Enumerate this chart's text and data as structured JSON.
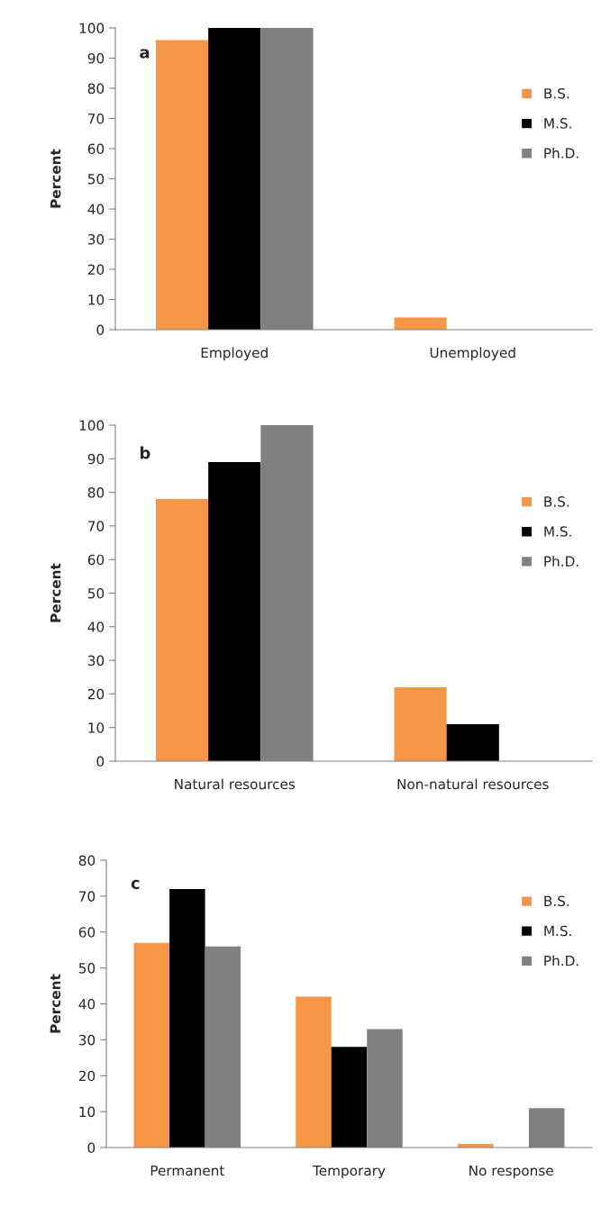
{
  "chart_data": [
    {
      "type": "bar",
      "annotations": [
        "a"
      ],
      "ylabel": "Percent",
      "categories": [
        "Employed",
        "Unemployed"
      ],
      "ylim": [
        0,
        100
      ],
      "yticks": [
        0,
        10,
        20,
        30,
        40,
        50,
        60,
        70,
        80,
        90,
        100
      ],
      "legend": "right",
      "grid": false,
      "series": [
        {
          "name": "B.S.",
          "color": "#f79646",
          "values": [
            96,
            4
          ]
        },
        {
          "name": "M.S.",
          "color": "#000000",
          "values": [
            100,
            0
          ]
        },
        {
          "name": "Ph.D.",
          "color": "#808080",
          "values": [
            100,
            0
          ]
        }
      ]
    },
    {
      "type": "bar",
      "annotations": [
        "b"
      ],
      "ylabel": "Percent",
      "categories": [
        "Natural resources",
        "Non-natural resources"
      ],
      "ylim": [
        0,
        100
      ],
      "yticks": [
        0,
        10,
        20,
        30,
        40,
        50,
        60,
        70,
        80,
        90,
        100
      ],
      "legend": "right",
      "grid": false,
      "series": [
        {
          "name": "B.S.",
          "color": "#f79646",
          "values": [
            78,
            22
          ]
        },
        {
          "name": "M.S.",
          "color": "#000000",
          "values": [
            89,
            11
          ]
        },
        {
          "name": "Ph.D.",
          "color": "#808080",
          "values": [
            100,
            0
          ]
        }
      ]
    },
    {
      "type": "bar",
      "annotations": [
        "c"
      ],
      "ylabel": "Percent",
      "categories": [
        "Permanent",
        "Temporary",
        "No response"
      ],
      "ylim": [
        0,
        80
      ],
      "yticks": [
        0,
        10,
        20,
        30,
        40,
        50,
        60,
        70,
        80
      ],
      "legend": "top right",
      "grid": false,
      "series": [
        {
          "name": "B.S.",
          "color": "#f79646",
          "values": [
            57,
            42,
            1
          ]
        },
        {
          "name": "M.S.",
          "color": "#000000",
          "values": [
            72,
            28,
            0
          ]
        },
        {
          "name": "Ph.D.",
          "color": "#808080",
          "values": [
            56,
            33,
            11
          ]
        }
      ]
    }
  ]
}
